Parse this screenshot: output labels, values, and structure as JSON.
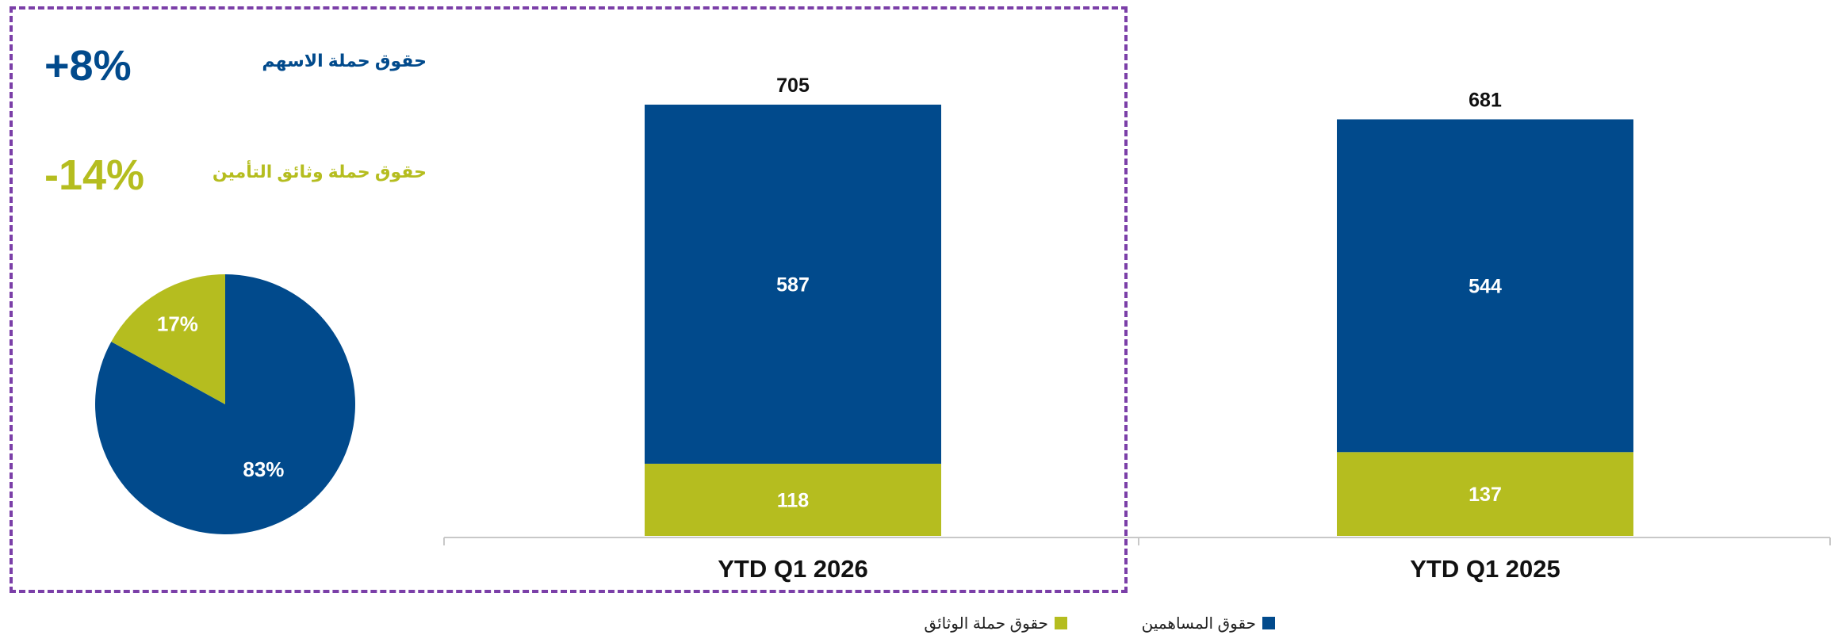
{
  "colors": {
    "navy": "#014A8C",
    "olive": "#B5BD1F",
    "highlight_border": "#7B3FA8",
    "axis": "#C8C8C8",
    "text_dark": "#111111",
    "label_on_bar": "#FFFFFF"
  },
  "kpis": [
    {
      "value": "+8%",
      "label": "حقوق حملة الاسهم",
      "color": "#014A8C"
    },
    {
      "value": "-14%",
      "label": "حقوق حملة وثائق التأمين",
      "color": "#B5BD1F"
    }
  ],
  "legend": [
    {
      "label": "حقوق المساهمين",
      "color": "#014A8C"
    },
    {
      "label": "حقوق حملة الوثائق",
      "color": "#B5BD1F"
    }
  ],
  "chart_data": [
    {
      "type": "pie",
      "labels": [
        "حقوق المساهمين",
        "حقوق حملة الوثائق"
      ],
      "values": [
        83,
        17
      ],
      "value_labels": [
        "83%",
        "17%"
      ],
      "colors": [
        "#014A8C",
        "#B5BD1F"
      ]
    },
    {
      "type": "bar",
      "stacked": true,
      "categories": [
        "YTD Q1 2026",
        "YTD Q1 2025"
      ],
      "series": [
        {
          "name": "حقوق حملة الوثائق",
          "values": [
            118,
            137
          ],
          "color": "#B5BD1F"
        },
        {
          "name": "حقوق المساهمين",
          "values": [
            587,
            544
          ],
          "color": "#014A8C"
        }
      ],
      "totals": [
        705,
        681
      ],
      "ylim": [
        0,
        705
      ],
      "grid": false,
      "legend_position": "bottom"
    }
  ]
}
